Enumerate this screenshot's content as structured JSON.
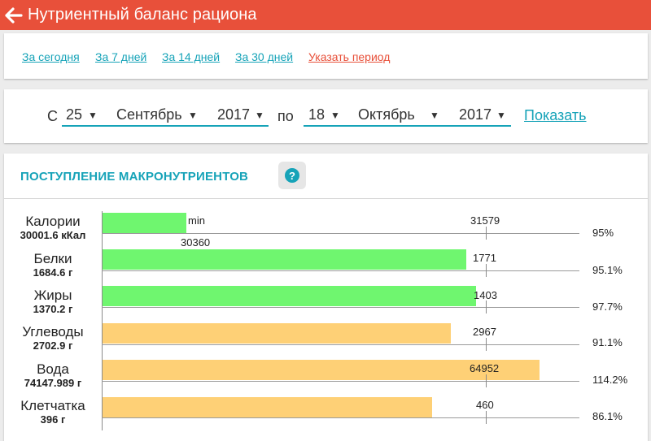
{
  "header": {
    "title": "Нутриентный баланс рациона",
    "back_icon": "arrow-left-icon"
  },
  "periods": {
    "today": "За сегодня",
    "week": "За 7 дней",
    "two_weeks": "За 14 дней",
    "month": "За 30 дней",
    "custom": "Указать период"
  },
  "range": {
    "from_label": "С",
    "from_day": "25",
    "from_month": "Сентябрь",
    "from_year": "2017",
    "to_label": "по",
    "to_day": "18",
    "to_month": "Октябрь",
    "to_year": "2017",
    "show": "Показать",
    "arrow": "▼"
  },
  "macros": {
    "title": "ПОСТУПЛЕНИЕ МАКРОНУТРИЕНТОВ",
    "help": "?",
    "rows": [
      {
        "name": "Калории",
        "amount": "30001.6 кКал",
        "target": "31579",
        "min_label": "min",
        "min_value": "30360",
        "percent": "95%"
      },
      {
        "name": "Белки",
        "amount": "1684.6 г",
        "target": "1771",
        "percent": "95.1%"
      },
      {
        "name": "Жиры",
        "amount": "1370.2 г",
        "target": "1403",
        "percent": "97.7%"
      },
      {
        "name": "Углеводы",
        "amount": "2702.9 г",
        "target": "2967",
        "percent": "91.1%"
      },
      {
        "name": "Вода",
        "amount": "74147.989 г",
        "target": "64952",
        "percent": "114.2%"
      },
      {
        "name": "Клетчатка",
        "amount": "396 г",
        "target": "460",
        "percent": "86.1%"
      }
    ]
  },
  "colors": {
    "accent": "#e8503a",
    "link": "#16a3b8",
    "bar_ok": "#6ff66f",
    "bar_low": "#fed076"
  }
}
